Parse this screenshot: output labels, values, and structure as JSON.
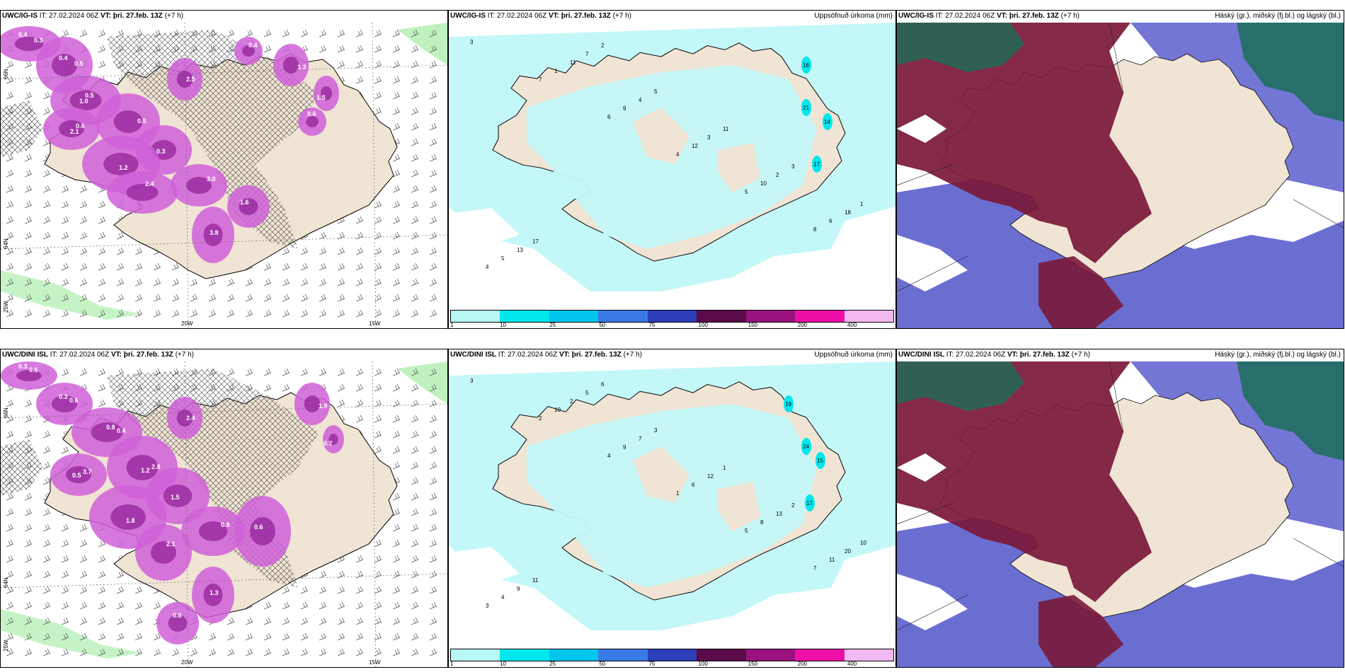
{
  "rows": [
    {
      "model": "UWC/IG-IS",
      "it_label": "IT:",
      "it_value": "27.02.2024 06Z",
      "vt_label": "VT:",
      "vt_value": "þri. 27.feb. 13Z",
      "lead": "(+7 h)",
      "precip_labels": [
        "3",
        "7",
        "6",
        "4",
        "5",
        "8",
        "4",
        "1",
        "9",
        "12",
        "10",
        "6",
        "5",
        "11",
        "4",
        "3",
        "2",
        "18",
        "13",
        "7",
        "5",
        "11",
        "3",
        "1",
        "17",
        "2"
      ],
      "precip_cyan_labels": [
        "16",
        "21",
        "14",
        "17"
      ],
      "pc_labels": [
        "0.4",
        "0.4",
        "0.5",
        "0.6",
        "0.5",
        "0.3",
        "1.2",
        "2.4",
        "3.0",
        "1.6",
        "3.8",
        "2.5",
        "1.3",
        "1.5",
        "0.6",
        "0.4",
        "0.3",
        "0.5",
        "1.0",
        "2.1"
      ]
    },
    {
      "model": "UWC/DINI ISL",
      "it_label": "IT:",
      "it_value": "27.02.2024 06Z",
      "vt_label": "VT:",
      "vt_value": "þri. 27.feb. 13Z",
      "lead": "(+7 h)",
      "precip_labels": [
        "3",
        "2",
        "4",
        "1",
        "5",
        "7",
        "3",
        "10",
        "9",
        "6",
        "8",
        "11",
        "4",
        "2",
        "7",
        "12",
        "13",
        "20",
        "9",
        "5",
        "3",
        "1",
        "2",
        "10",
        "11",
        "6"
      ],
      "precip_cyan_labels": [
        "19",
        "24",
        "15",
        "17"
      ],
      "pc_labels": [
        "0.3",
        "0.3",
        "0.8",
        "3.7",
        "2.8",
        "1.5",
        "1.8",
        "2.1",
        "0.9",
        "0.6",
        "1.3",
        "2.4",
        "1.9",
        "0.7",
        "0.6",
        "0.6",
        "0.6",
        "0.4",
        "0.5",
        "1.2"
      ]
    }
  ],
  "precip_title": "Uppsöfnuð úrkoma (mm)",
  "cloud_title": "Háský (gr.), miðský (fj.bl.) og lágský (bl.)",
  "colorbar": {
    "ticks": [
      "1",
      "10",
      "25",
      "50",
      "75",
      "100",
      "150",
      "200",
      "400"
    ],
    "colors": [
      "#b7f7f5",
      "#00e8ee",
      "#00c6ee",
      "#3a7ae8",
      "#2d3fb8",
      "#5b0a4a",
      "#9a127f",
      "#ee0fa8",
      "#f2b8f2"
    ]
  },
  "lon_labels": [
    "20W",
    "15W"
  ],
  "lat_labels": [
    "66N",
    "64N",
    "25W"
  ],
  "colors": {
    "land": "#f0e4d4",
    "sea": "#ffffff",
    "precip_light": "#c4f7f8",
    "convective": "#d060d8",
    "convective_dark": "#8e1e96",
    "cloud_high": "#1b6e58",
    "cloud_mid": "#7a1838",
    "cloud_low": "#5b5ecc",
    "green": "#b8f0b8"
  }
}
